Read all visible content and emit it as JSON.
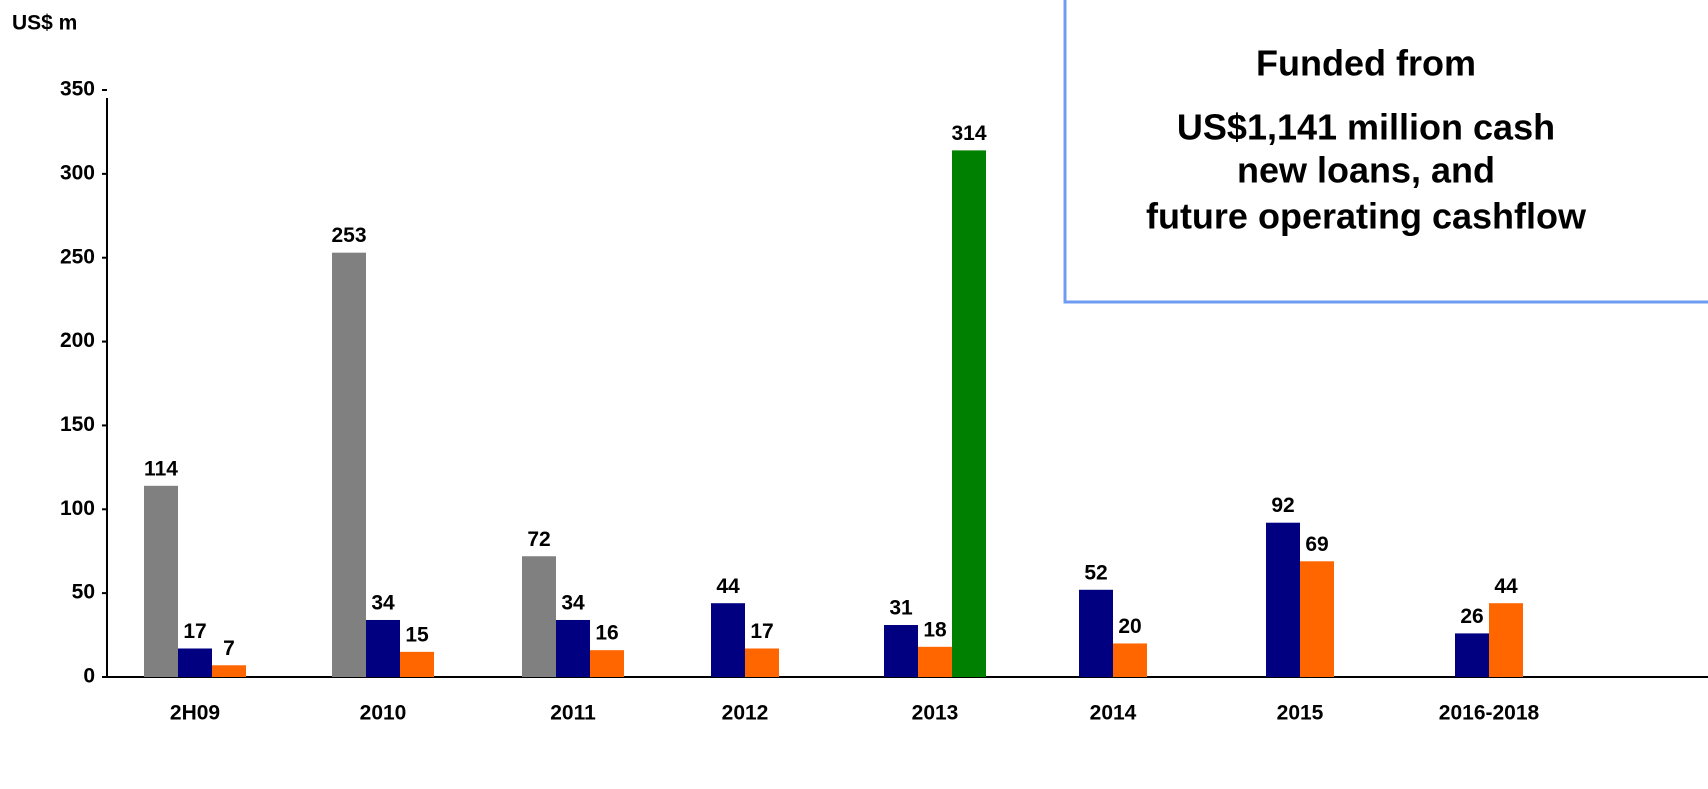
{
  "chart_data": {
    "type": "bar",
    "y_axis_label": "US$ m",
    "annotation": [
      "Funded from",
      "US$1,141 million cash",
      "new loans, and",
      "future operating cashflow"
    ],
    "categories": [
      "2H09",
      "2010",
      "2011",
      "2012",
      "2013",
      "2014",
      "2015",
      "2016-2018"
    ],
    "series": [
      {
        "color": "#808080",
        "values": [
          114,
          253,
          72,
          null,
          null,
          null,
          null,
          null
        ]
      },
      {
        "color": "#000080",
        "values": [
          17,
          34,
          34,
          44,
          31,
          52,
          92,
          26
        ]
      },
      {
        "color": "#ff6600",
        "values": [
          7,
          15,
          16,
          17,
          18,
          20,
          69,
          44
        ]
      },
      {
        "color": "#008000",
        "values": [
          null,
          null,
          null,
          null,
          314,
          null,
          null,
          null
        ]
      }
    ],
    "ylim": [
      0,
      350
    ],
    "yticks": [
      0,
      50,
      100,
      150,
      200,
      250,
      300,
      350
    ],
    "grid": false
  }
}
